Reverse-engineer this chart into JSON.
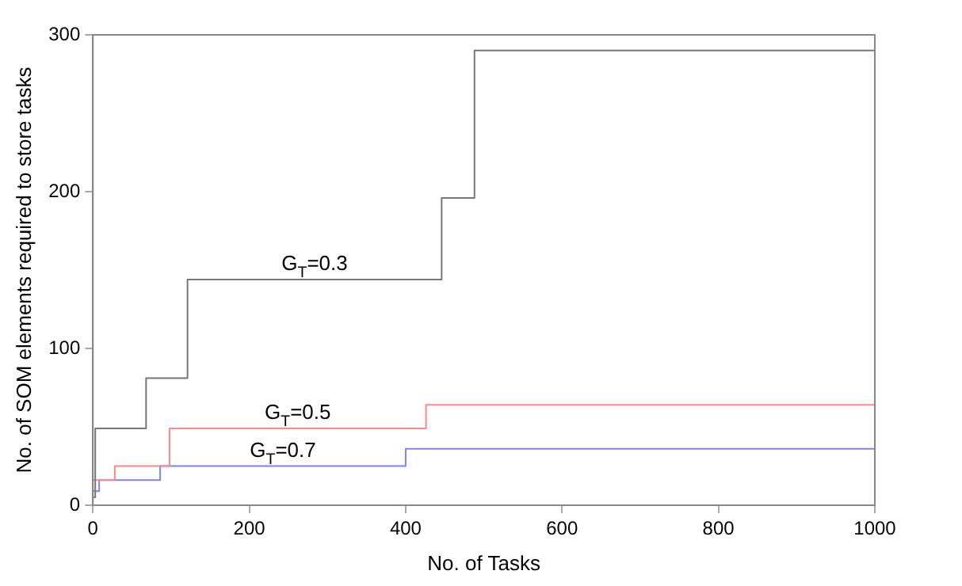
{
  "chart_data": {
    "type": "step",
    "xlabel": "No. of Tasks",
    "ylabel": "No. of SOM elements required to store tasks",
    "xlim": [
      0,
      1000
    ],
    "xticks": [
      0,
      200,
      400,
      600,
      800,
      1000
    ],
    "ylim": [
      0,
      300
    ],
    "yticks": [
      0,
      100,
      200,
      300
    ],
    "grid": false,
    "legend": false,
    "series": [
      {
        "name": "G$_{T}$=0.3",
        "color": "#777777",
        "x": [
          0,
          3,
          68,
          121,
          446,
          488,
          1000
        ],
        "values": [
          5,
          49,
          81,
          144,
          196,
          290,
          290
        ]
      },
      {
        "name": "G$_{T}$=0.5",
        "color": "#ff8888",
        "x": [
          0,
          28,
          98,
          426,
          1000
        ],
        "values": [
          16,
          25,
          49,
          64,
          64
        ]
      },
      {
        "name": "G$_{T}$=0.7",
        "color": "#8080ff",
        "x": [
          0,
          8,
          86,
          400,
          1000
        ],
        "values": [
          9,
          16,
          25,
          36,
          36
        ]
      }
    ]
  }
}
